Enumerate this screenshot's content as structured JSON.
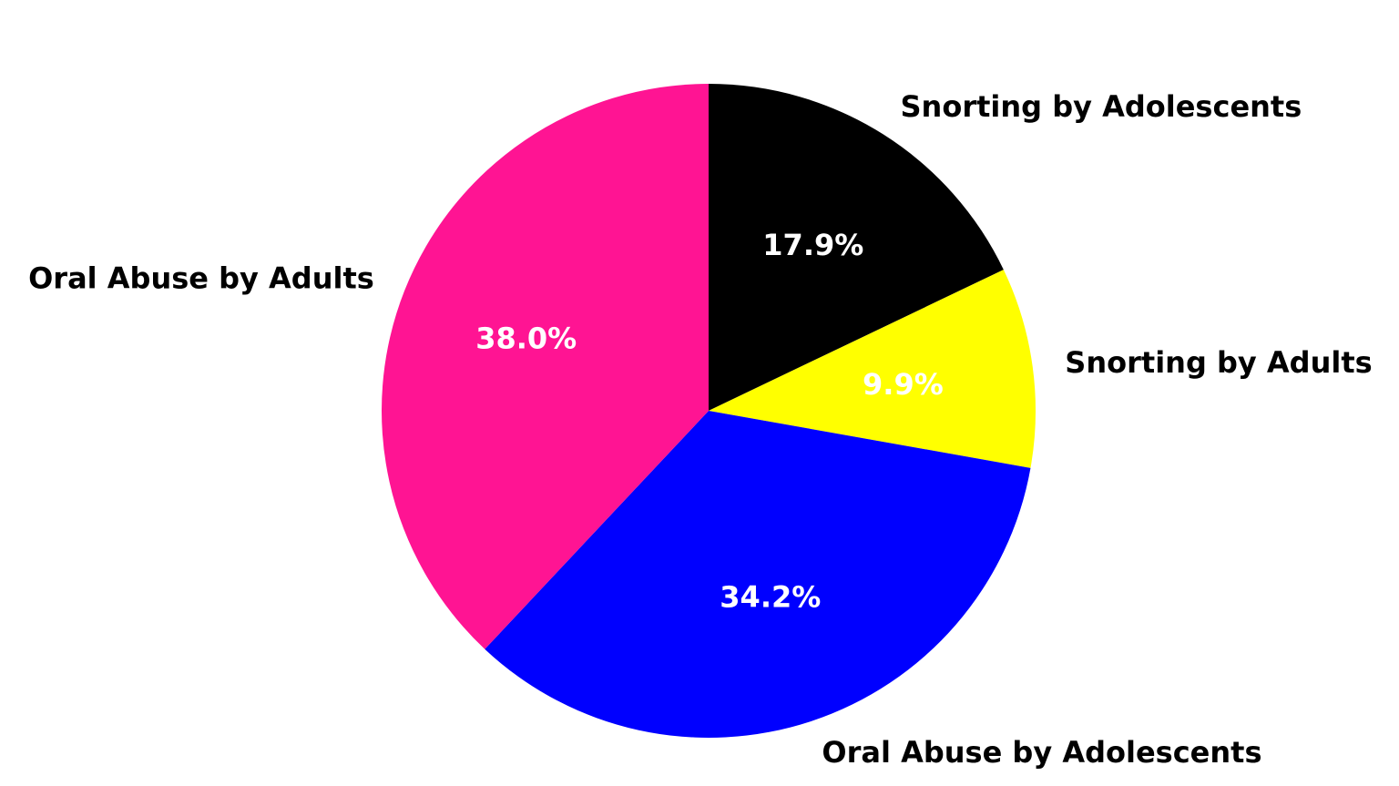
{
  "chart_data": {
    "type": "pie",
    "title": "",
    "start_angle_deg": 90,
    "direction": "clockwise",
    "slices": [
      {
        "label": "Snorting by Adolescents",
        "value": 17.9,
        "pct_label": "17.9%",
        "color": "#000000"
      },
      {
        "label": "Snorting by Adults",
        "value": 9.9,
        "pct_label": "9.9%",
        "color": "#ffff00"
      },
      {
        "label": "Oral Abuse by Adolescents",
        "value": 34.2,
        "pct_label": "34.2%",
        "color": "#0000ff"
      },
      {
        "label": "Oral Abuse by Adults",
        "value": 38.0,
        "pct_label": "38.0%",
        "color": "#ff1493"
      }
    ]
  }
}
